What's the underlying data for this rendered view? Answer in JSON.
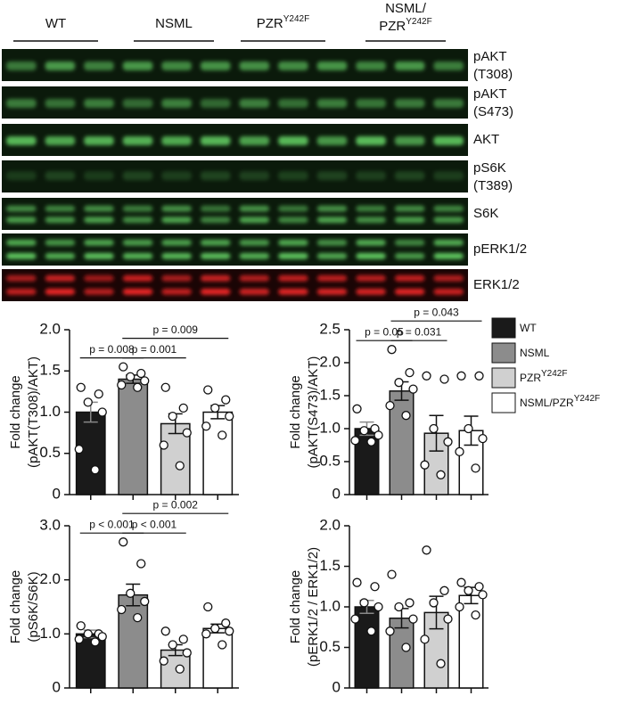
{
  "blot": {
    "groups": [
      {
        "text": "WT"
      },
      {
        "text": "NSML"
      },
      {
        "text": "PZR",
        "sup": "Y242F"
      },
      {
        "above": "NSML/",
        "text": "PZR",
        "sup": "Y242F"
      }
    ],
    "rows": [
      [
        "pAKT",
        "(T308)"
      ],
      [
        "pAKT",
        "(S473)"
      ],
      [
        "AKT"
      ],
      [
        "pS6K",
        "(T389)"
      ],
      [
        "S6K"
      ],
      [
        "pERK1/2"
      ],
      [
        "ERK1/2"
      ]
    ]
  },
  "legend": {
    "items": [
      {
        "name": "WT",
        "color": "#1a1a1a"
      },
      {
        "name": "NSML",
        "color": "#8c8c8c"
      },
      {
        "name": "PZR",
        "sup": "Y242F",
        "color": "#d0d0d0"
      },
      {
        "name": "NSML/PZR",
        "sup": "Y242F",
        "color": "#ffffff"
      }
    ]
  },
  "chart_data": [
    {
      "type": "bar",
      "ylabel": [
        "Fold change",
        "(pAKT(T308)/AKT)"
      ],
      "ylim": [
        0,
        2
      ],
      "yticks": [
        0,
        0.5,
        {
          "value": 1,
          "label": "1.0"
        },
        1.5,
        {
          "value": 2,
          "label": "2.0"
        }
      ],
      "values": [
        1.0,
        1.4,
        0.86,
        1.0
      ],
      "errors": [
        0.12,
        0.05,
        0.12,
        0.08
      ],
      "points": [
        [
          1.3,
          1.22,
          1.12,
          1.0,
          0.55,
          0.3
        ],
        [
          1.55,
          1.47,
          1.43,
          1.38,
          1.33,
          1.3
        ],
        [
          1.3,
          1.05,
          0.95,
          0.75,
          0.6,
          0.35
        ],
        [
          1.27,
          1.15,
          1.05,
          0.95,
          0.83,
          0.72
        ]
      ],
      "annotations": [
        {
          "text": "p = 0.008",
          "between": [
            "WT",
            "NSML"
          ]
        },
        {
          "text": "p = 0.001",
          "between": [
            "NSML",
            "PZR"
          ]
        },
        {
          "text": "p = 0.009",
          "between": [
            "NSML",
            "NSML/PZR"
          ]
        }
      ]
    },
    {
      "type": "bar",
      "ylabel": [
        "Fold change",
        "(pAKT(S473)/AKT)"
      ],
      "ylim": [
        0,
        2.5
      ],
      "yticks": [
        0,
        0.5,
        {
          "value": 1,
          "label": "1.0"
        },
        1.5,
        {
          "value": 2,
          "label": "2.0"
        },
        2.5
      ],
      "values": [
        1.0,
        1.57,
        0.93,
        0.97
      ],
      "errors": [
        0.1,
        0.14,
        0.27,
        0.22
      ],
      "points": [
        [
          1.3,
          1.0,
          0.97,
          0.9,
          0.82,
          0.8
        ],
        [
          2.2,
          1.85,
          1.7,
          1.6,
          1.35,
          1.2
        ],
        [
          1.8,
          1.75,
          1.0,
          0.8,
          0.45,
          0.3
        ],
        [
          1.8,
          1.8,
          1.0,
          0.85,
          0.65,
          0.4
        ]
      ],
      "annotations": [
        {
          "text": "p = 0.05",
          "between": [
            "WT",
            "NSML"
          ]
        },
        {
          "text": "p = 0.031",
          "between": [
            "NSML",
            "PZR"
          ]
        },
        {
          "text": "p = 0.043",
          "between": [
            "NSML",
            "NSML/PZR"
          ]
        }
      ]
    },
    {
      "type": "bar",
      "ylabel": [
        "Fold change",
        "(pS6K/S6K)"
      ],
      "ylim": [
        0,
        3
      ],
      "yticks": [
        0,
        {
          "value": 1,
          "label": "1.0"
        },
        {
          "value": 2,
          "label": "2.0"
        },
        {
          "value": 3,
          "label": "3.0"
        }
      ],
      "values": [
        1.0,
        1.72,
        0.7,
        1.1
      ],
      "errors": [
        0.07,
        0.2,
        0.1,
        0.08
      ],
      "points": [
        [
          1.15,
          1.0,
          1.0,
          0.95,
          0.9,
          0.85
        ],
        [
          2.7,
          2.3,
          1.75,
          1.6,
          1.45,
          1.3
        ],
        [
          1.05,
          0.9,
          0.8,
          0.65,
          0.5,
          0.35
        ],
        [
          1.5,
          1.2,
          1.1,
          1.05,
          1.0,
          0.8
        ]
      ],
      "annotations": [
        {
          "text": "p < 0.001",
          "between": [
            "WT",
            "NSML"
          ]
        },
        {
          "text": "p < 0.001",
          "between": [
            "NSML",
            "PZR"
          ]
        },
        {
          "text": "p = 0.002",
          "between": [
            "NSML",
            "NSML/PZR"
          ]
        }
      ]
    },
    {
      "type": "bar",
      "ylabel": [
        "Fold change",
        "(pERK1/2 / ERK1/2)"
      ],
      "ylim": [
        0,
        2
      ],
      "yticks": [
        0,
        0.5,
        {
          "value": 1,
          "label": "1.0"
        },
        1.5,
        {
          "value": 2,
          "label": "2.0"
        }
      ],
      "values": [
        1.0,
        0.86,
        0.93,
        1.14
      ],
      "errors": [
        0.08,
        0.12,
        0.2,
        0.1
      ],
      "points": [
        [
          1.3,
          1.25,
          1.05,
          1.0,
          0.85,
          0.7
        ],
        [
          1.4,
          1.05,
          1.0,
          0.85,
          0.7,
          0.5
        ],
        [
          1.7,
          1.2,
          1.05,
          0.85,
          0.6,
          0.3
        ],
        [
          1.3,
          1.25,
          1.2,
          1.15,
          1.0,
          0.9
        ]
      ]
    }
  ]
}
